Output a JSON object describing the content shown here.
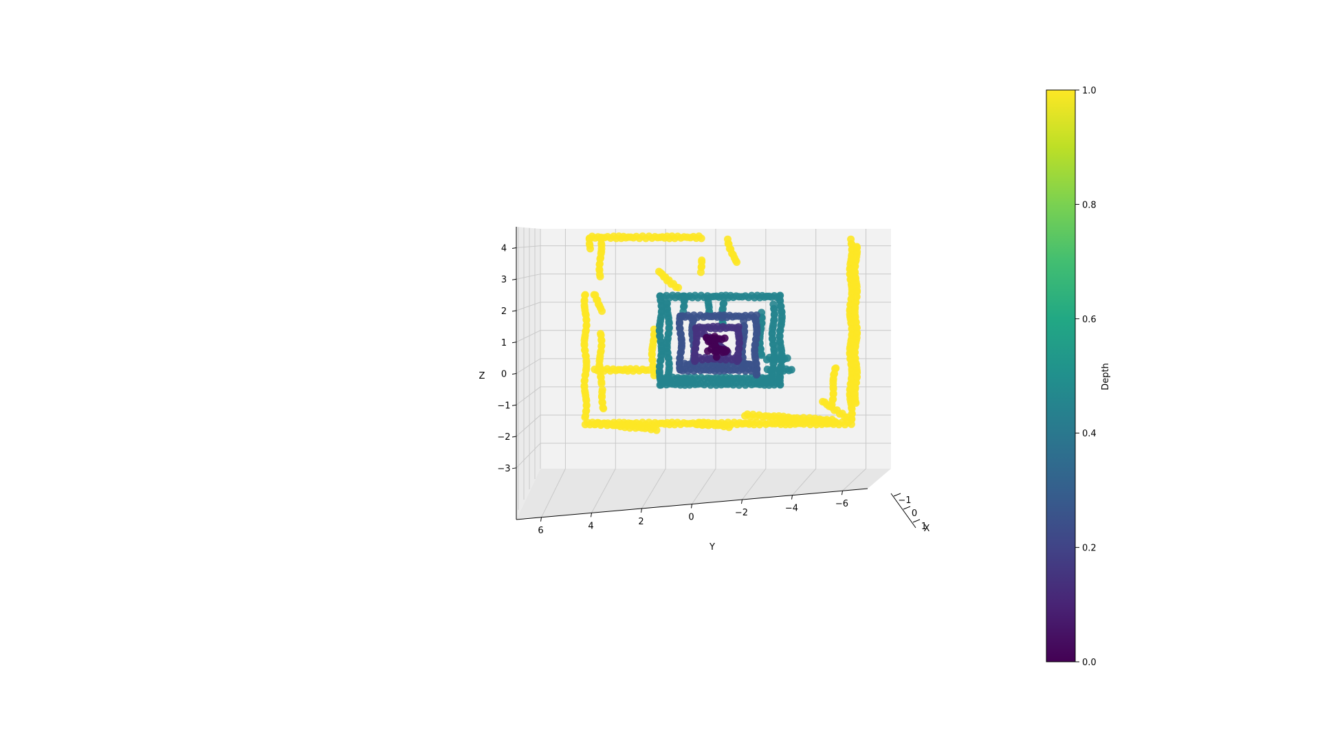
{
  "chart_data": {
    "type": "scatter",
    "projection": "3d",
    "title": "",
    "xlabel": "X",
    "ylabel": "Y",
    "zlabel": "Z",
    "xlim": [
      -1,
      1
    ],
    "ylim": [
      7,
      -7
    ],
    "zlim": [
      -3.9,
      4.6
    ],
    "x_ticks": [
      "−1",
      "0",
      "1"
    ],
    "y_ticks": [
      "6",
      "4",
      "2",
      "0",
      "−2",
      "−4",
      "−6"
    ],
    "z_ticks": [
      "4",
      "3",
      "2",
      "1",
      "0",
      "−1",
      "−2",
      "−3"
    ],
    "grid": true,
    "colormap": "viridis",
    "colorbar": {
      "label": "Depth",
      "range": [
        0.0,
        1.0
      ],
      "ticks": [
        "0.0",
        "0.2",
        "0.4",
        "0.6",
        "0.8",
        "1.0"
      ]
    },
    "series": [
      {
        "depth": 1.0,
        "color": "#fde725",
        "segments": [
          {
            "from": [
              5.0,
              4.3
            ],
            "to": [
              0.6,
              4.3
            ]
          },
          {
            "from": [
              5.0,
              4.3
            ],
            "to": [
              5.0,
              3.9
            ]
          },
          {
            "from": [
              4.6,
              4.3
            ],
            "to": [
              4.6,
              2.9
            ]
          },
          {
            "from": [
              5.2,
              2.3
            ],
            "to": [
              5.2,
              -2.1
            ]
          },
          {
            "from": [
              4.9,
              2.3
            ],
            "to": [
              4.5,
              1.7
            ]
          },
          {
            "from": [
              4.6,
              0.9
            ],
            "to": [
              4.6,
              -0.9
            ]
          },
          {
            "from": [
              4.8,
              -0.4
            ],
            "to": [
              2.7,
              -0.4
            ]
          },
          {
            "from": [
              4.5,
              -1.1
            ],
            "to": [
              4.5,
              -1.8
            ]
          },
          {
            "from": [
              5.2,
              -2.3
            ],
            "to": [
              -5.4,
              -2.3
            ]
          },
          {
            "from": [
              4.8,
              -2.3
            ],
            "to": [
              2.4,
              -2.5
            ]
          },
          {
            "from": [
              0.7,
              -2.3
            ],
            "to": [
              -0.5,
              -2.4
            ]
          },
          {
            "from": [
              -1.2,
              -2.0
            ],
            "to": [
              -4.8,
              -2.2
            ]
          },
          {
            "from": [
              -5.4,
              4.2
            ],
            "to": [
              -5.4,
              -2.2
            ]
          },
          {
            "from": [
              -5.6,
              4.0
            ],
            "to": [
              -5.6,
              -1.6
            ]
          },
          {
            "from": [
              -4.8,
              -0.3
            ],
            "to": [
              -4.6,
              -1.7
            ]
          },
          {
            "from": [
              -4.3,
              -1.5
            ],
            "to": [
              -5.2,
              -2.1
            ]
          },
          {
            "from": [
              -0.5,
              4.2
            ],
            "to": [
              -0.8,
              3.4
            ]
          },
          {
            "from": [
              2.3,
              3.1
            ],
            "to": [
              1.5,
              2.5
            ]
          },
          {
            "from": [
              2.5,
              1.0
            ],
            "to": [
              2.5,
              -0.6
            ]
          },
          {
            "from": [
              0.6,
              3.5
            ],
            "to": [
              0.6,
              3.1
            ]
          }
        ]
      },
      {
        "depth": 0.58,
        "color": "#25848e",
        "segments": [
          {
            "from": [
              2.2,
              2.2
            ],
            "to": [
              -2.6,
              2.2
            ]
          },
          {
            "from": [
              2.2,
              2.2
            ],
            "to": [
              2.2,
              -0.9
            ]
          },
          {
            "from": [
              1.9,
              2.0
            ],
            "to": [
              1.9,
              -0.8
            ]
          },
          {
            "from": [
              2.2,
              -0.7
            ],
            "to": [
              -2.6,
              -0.7
            ]
          },
          {
            "from": [
              2.2,
              -0.9
            ],
            "to": [
              -2.6,
              -0.9
            ]
          },
          {
            "from": [
              -2.6,
              2.2
            ],
            "to": [
              -2.6,
              -0.9
            ]
          },
          {
            "from": [
              -2.3,
              1.9
            ],
            "to": [
              -2.3,
              -0.6
            ]
          },
          {
            "from": [
              0.3,
              2.1
            ],
            "to": [
              0.3,
              1.6
            ]
          },
          {
            "from": [
              -0.3,
              2.0
            ],
            "to": [
              -0.3,
              1.2
            ]
          },
          {
            "from": [
              -1.8,
              1.6
            ],
            "to": [
              -1.8,
              0.1
            ]
          },
          {
            "from": [
              -2.0,
              0.0
            ],
            "to": [
              -2.9,
              0.0
            ]
          },
          {
            "from": [
              -2.1,
              -0.4
            ],
            "to": [
              -3.0,
              -0.4
            ]
          },
          {
            "from": [
              1.3,
              2.2
            ],
            "to": [
              1.3,
              1.7
            ]
          }
        ]
      },
      {
        "depth": 0.3,
        "color": "#3b528b",
        "segments": [
          {
            "from": [
              1.4,
              1.5
            ],
            "to": [
              -1.6,
              1.5
            ]
          },
          {
            "from": [
              1.4,
              1.5
            ],
            "to": [
              1.4,
              -0.4
            ]
          },
          {
            "from": [
              -1.6,
              1.4
            ],
            "to": [
              -1.6,
              -0.6
            ]
          },
          {
            "from": [
              1.4,
              -0.4
            ],
            "to": [
              -1.6,
              -0.4
            ]
          },
          {
            "from": [
              0.9,
              1.4
            ],
            "to": [
              0.9,
              -0.2
            ]
          },
          {
            "from": [
              -1.1,
              1.3
            ],
            "to": [
              -1.1,
              -0.3
            ]
          },
          {
            "from": [
              1.2,
              -0.2
            ],
            "to": [
              -1.4,
              -0.2
            ]
          }
        ]
      },
      {
        "depth": 0.15,
        "color": "#46327e",
        "segments": [
          {
            "from": [
              0.8,
              1.1
            ],
            "to": [
              -0.9,
              1.1
            ]
          },
          {
            "from": [
              0.8,
              1.1
            ],
            "to": [
              0.8,
              -0.1
            ]
          },
          {
            "from": [
              -0.9,
              1.1
            ],
            "to": [
              -0.9,
              -0.1
            ]
          },
          {
            "from": [
              0.8,
              0.0
            ],
            "to": [
              -0.9,
              0.0
            ]
          },
          {
            "from": [
              0.5,
              0.9
            ],
            "to": [
              -0.5,
              0.2
            ]
          }
        ]
      },
      {
        "depth": 0.05,
        "color": "#440154",
        "segments": [
          {
            "from": [
              0.4,
              0.7
            ],
            "to": [
              -0.4,
              0.7
            ]
          },
          {
            "from": [
              0.4,
              0.7
            ],
            "to": [
              -0.4,
              0.2
            ]
          },
          {
            "from": [
              0.3,
              0.3
            ],
            "to": [
              -0.4,
              0.3
            ]
          },
          {
            "from": [
              0.0,
              0.8
            ],
            "to": [
              0.0,
              0.1
            ]
          }
        ]
      }
    ]
  }
}
